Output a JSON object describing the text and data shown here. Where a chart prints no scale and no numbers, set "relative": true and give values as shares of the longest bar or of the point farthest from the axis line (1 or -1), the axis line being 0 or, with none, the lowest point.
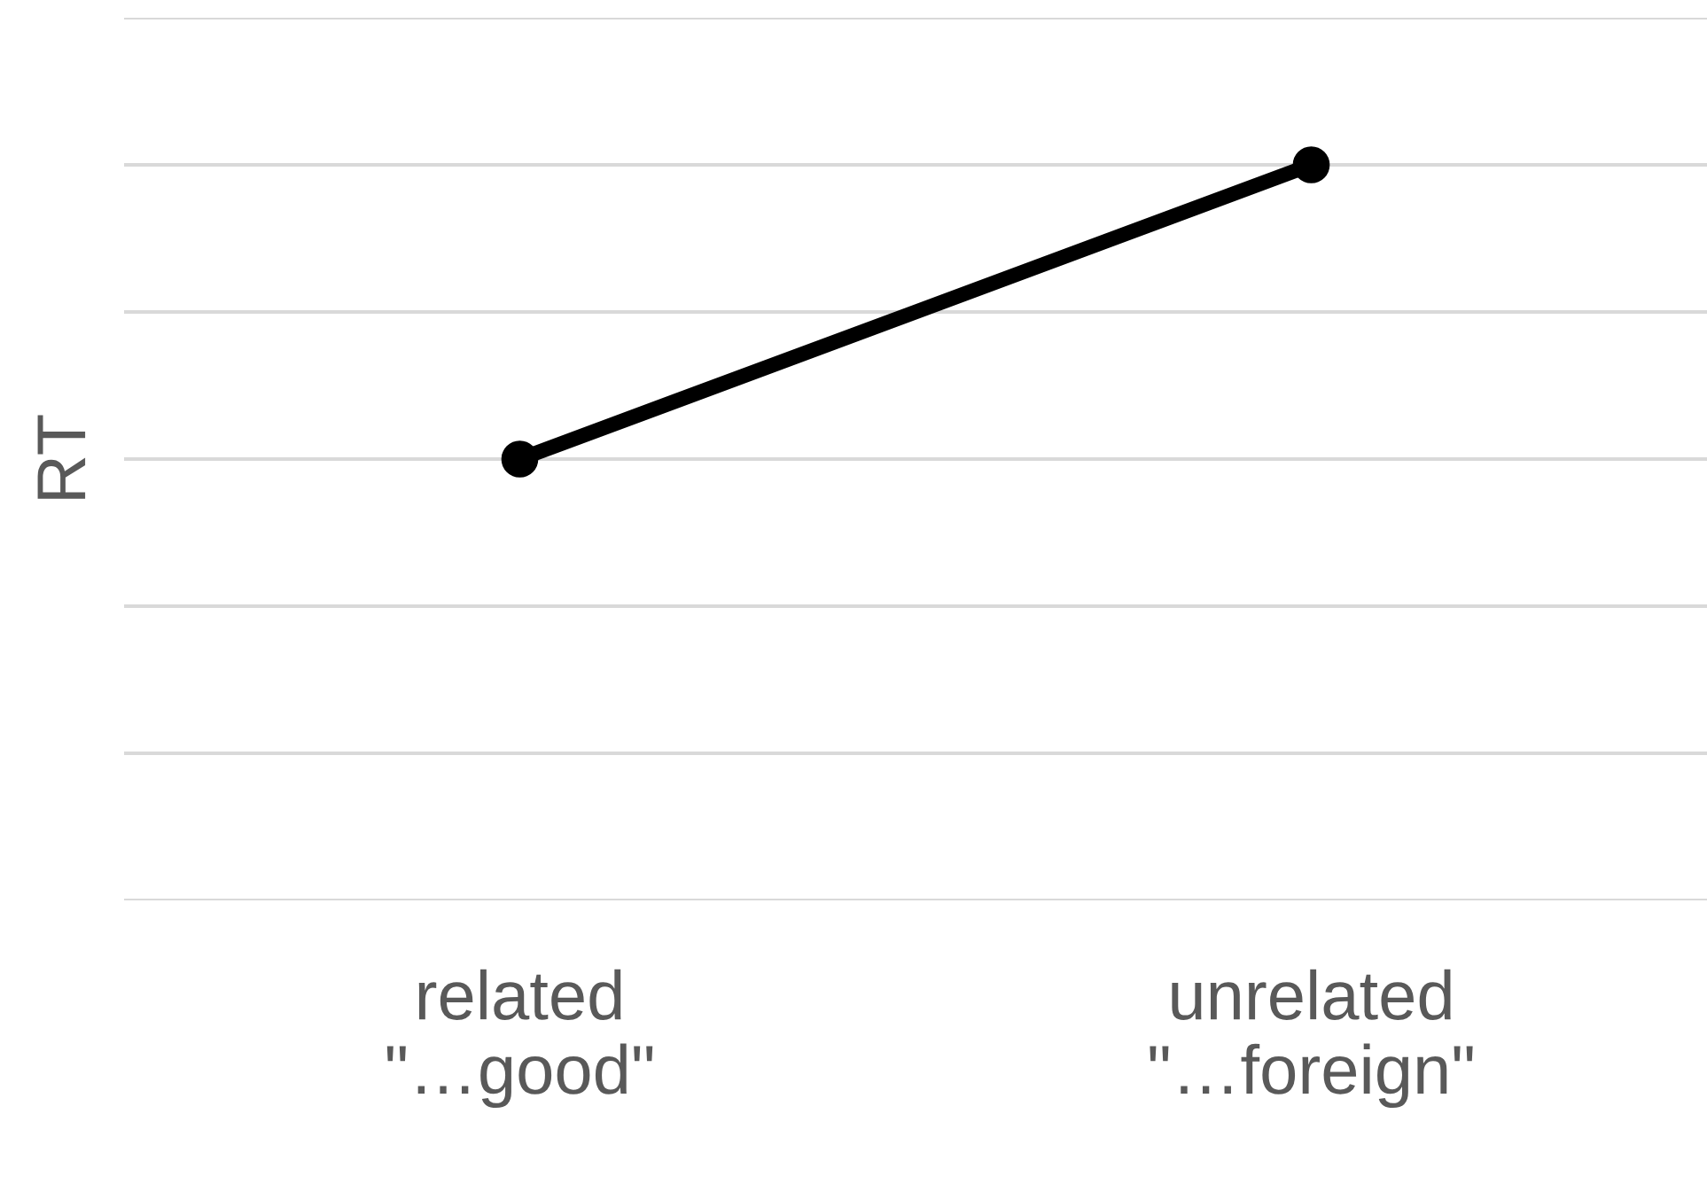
{
  "chart_data": {
    "type": "line",
    "ylabel": "RT",
    "categories": [
      "related\n\"…good\"",
      "unrelated\n\"…foreign\""
    ],
    "series": [
      {
        "color": "#000000",
        "values": [
          0.6,
          1
        ]
      }
    ],
    "relative": true,
    "grid": "y",
    "marker": "circle",
    "line_style": "solid",
    "legend": false
  }
}
